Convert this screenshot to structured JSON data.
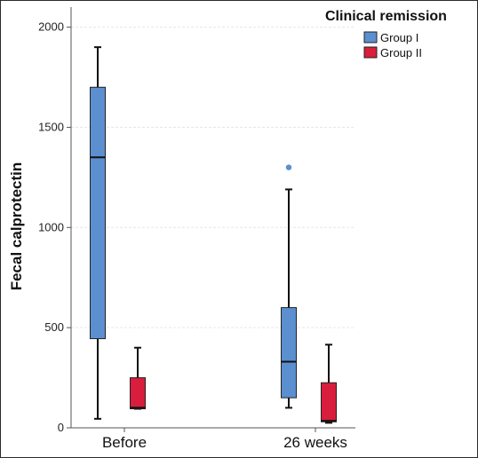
{
  "chart_data": {
    "type": "box",
    "ylabel": "Fecal calprotectin",
    "xlabel": "",
    "ylim": [
      0,
      2100
    ],
    "yticks": [
      0,
      500,
      1000,
      1500,
      2000
    ],
    "grid": true,
    "categories": [
      "Before",
      "26 weeks"
    ],
    "legend": {
      "title": "Clinical remission",
      "position": "top-right"
    },
    "series": [
      {
        "name": "Group I",
        "color": "#5b8fd0",
        "boxes": [
          {
            "min": 45,
            "q1": 445,
            "median": 1350,
            "q3": 1700,
            "max": 1900,
            "outliers": []
          },
          {
            "min": 100,
            "q1": 150,
            "median": 330,
            "q3": 600,
            "max": 1190,
            "outliers": [
              1300
            ]
          }
        ]
      },
      {
        "name": "Group II",
        "color": "#d81e3c",
        "boxes": [
          {
            "min": 95,
            "q1": 95,
            "median": 100,
            "q3": 250,
            "max": 400,
            "outliers": []
          },
          {
            "min": 25,
            "q1": 30,
            "median": 35,
            "q3": 225,
            "max": 415,
            "outliers": []
          }
        ]
      }
    ]
  }
}
